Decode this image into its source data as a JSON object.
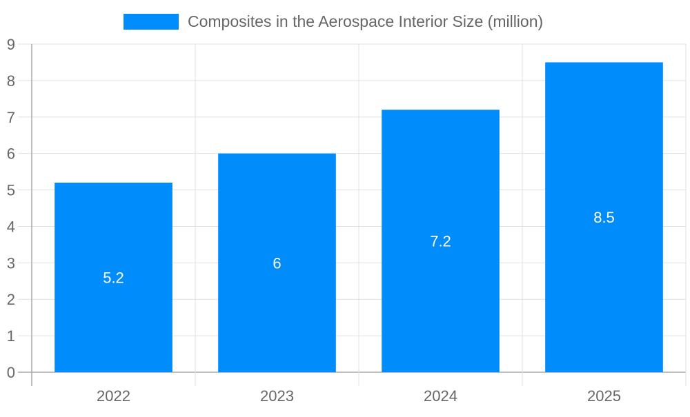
{
  "chart_data": {
    "type": "bar",
    "categories": [
      "2022",
      "2023",
      "2024",
      "2025"
    ],
    "series": [
      {
        "name": "Composites in the Aerospace Interior Size (million)",
        "values": [
          5.2,
          6,
          7.2,
          8.5
        ],
        "color": "#008cfa"
      }
    ],
    "data_labels": [
      "5.2",
      "6",
      "7.2",
      "8.5"
    ],
    "ylim": [
      0,
      9
    ],
    "yticks": [
      "0",
      "1",
      "2",
      "3",
      "4",
      "5",
      "6",
      "7",
      "8",
      "9"
    ],
    "grid": true,
    "legend_position": "top"
  }
}
